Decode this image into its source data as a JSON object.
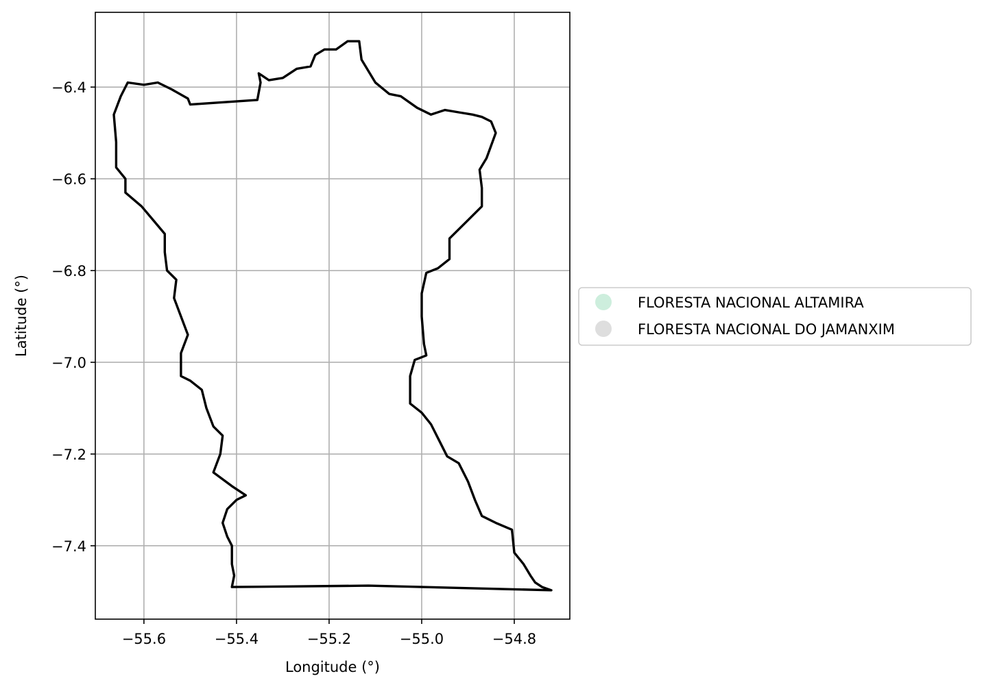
{
  "chart_data": {
    "type": "map",
    "xlabel": "Longitude (°)",
    "ylabel": "Latitude (°)",
    "xlim": [
      -55.705,
      -54.68
    ],
    "ylim": [
      -7.56,
      -6.237
    ],
    "xticks": [
      {
        "value": -55.6,
        "label": "−55.6"
      },
      {
        "value": -55.4,
        "label": "−55.4"
      },
      {
        "value": -55.2,
        "label": "−55.2"
      },
      {
        "value": -55.0,
        "label": "−55.0"
      },
      {
        "value": -54.8,
        "label": "−54.8"
      }
    ],
    "yticks": [
      {
        "value": -6.4,
        "label": "−6.4"
      },
      {
        "value": -6.6,
        "label": "−6.6"
      },
      {
        "value": -6.8,
        "label": "−6.8"
      },
      {
        "value": -7.0,
        "label": "−7.0"
      },
      {
        "value": -7.2,
        "label": "−7.2"
      },
      {
        "value": -7.4,
        "label": "−7.4"
      }
    ],
    "grid": true,
    "legend": {
      "placement": "center-right-outside",
      "entries": [
        {
          "label": "FLORESTA NACIONAL ALTAMIRA",
          "color": "#cdeedd"
        },
        {
          "label": "FLORESTA NACIONAL DO JAMANXIM",
          "color": "#dedede"
        }
      ]
    },
    "boundary_color": "#000000",
    "boundary": [
      [
        -55.5,
        -6.438
      ],
      [
        -55.355,
        -6.428
      ],
      [
        -55.348,
        -6.39
      ],
      [
        -55.352,
        -6.37
      ],
      [
        -55.33,
        -6.385
      ],
      [
        -55.3,
        -6.38
      ],
      [
        -55.27,
        -6.36
      ],
      [
        -55.24,
        -6.355
      ],
      [
        -55.23,
        -6.33
      ],
      [
        -55.21,
        -6.318
      ],
      [
        -55.185,
        -6.318
      ],
      [
        -55.16,
        -6.3
      ],
      [
        -55.135,
        -6.3
      ],
      [
        -55.13,
        -6.34
      ],
      [
        -55.1,
        -6.39
      ],
      [
        -55.07,
        -6.415
      ],
      [
        -55.045,
        -6.42
      ],
      [
        -55.01,
        -6.445
      ],
      [
        -54.98,
        -6.46
      ],
      [
        -54.95,
        -6.45
      ],
      [
        -54.92,
        -6.455
      ],
      [
        -54.89,
        -6.46
      ],
      [
        -54.87,
        -6.465
      ],
      [
        -54.85,
        -6.475
      ],
      [
        -54.84,
        -6.5
      ],
      [
        -54.86,
        -6.555
      ],
      [
        -54.875,
        -6.58
      ],
      [
        -54.87,
        -6.62
      ],
      [
        -54.87,
        -6.66
      ],
      [
        -54.9,
        -6.69
      ],
      [
        -54.92,
        -6.71
      ],
      [
        -54.94,
        -6.73
      ],
      [
        -54.94,
        -6.775
      ],
      [
        -54.965,
        -6.795
      ],
      [
        -54.99,
        -6.805
      ],
      [
        -55.0,
        -6.85
      ],
      [
        -55.0,
        -6.9
      ],
      [
        -54.995,
        -6.96
      ],
      [
        -54.99,
        -6.985
      ],
      [
        -55.015,
        -6.995
      ],
      [
        -55.025,
        -7.03
      ],
      [
        -55.025,
        -7.09
      ],
      [
        -55.0,
        -7.11
      ],
      [
        -54.98,
        -7.135
      ],
      [
        -54.96,
        -7.175
      ],
      [
        -54.945,
        -7.205
      ],
      [
        -54.92,
        -7.22
      ],
      [
        -54.9,
        -7.26
      ],
      [
        -54.885,
        -7.3
      ],
      [
        -54.87,
        -7.335
      ],
      [
        -54.84,
        -7.35
      ],
      [
        -54.805,
        -7.365
      ],
      [
        -54.8,
        -7.415
      ],
      [
        -54.78,
        -7.44
      ],
      [
        -54.765,
        -7.465
      ],
      [
        -54.755,
        -7.48
      ],
      [
        -54.74,
        -7.49
      ],
      [
        -54.72,
        -7.497
      ],
      [
        -55.115,
        -7.487
      ],
      [
        -55.41,
        -7.49
      ],
      [
        -55.405,
        -7.465
      ],
      [
        -55.41,
        -7.44
      ],
      [
        -55.41,
        -7.4
      ],
      [
        -55.42,
        -7.38
      ],
      [
        -55.43,
        -7.35
      ],
      [
        -55.42,
        -7.32
      ],
      [
        -55.4,
        -7.3
      ],
      [
        -55.38,
        -7.29
      ],
      [
        -55.41,
        -7.27
      ],
      [
        -55.45,
        -7.24
      ],
      [
        -55.435,
        -7.2
      ],
      [
        -55.43,
        -7.16
      ],
      [
        -55.45,
        -7.14
      ],
      [
        -55.465,
        -7.1
      ],
      [
        -55.475,
        -7.06
      ],
      [
        -55.5,
        -7.04
      ],
      [
        -55.52,
        -7.03
      ],
      [
        -55.52,
        -6.98
      ],
      [
        -55.505,
        -6.94
      ],
      [
        -55.52,
        -6.9
      ],
      [
        -55.535,
        -6.86
      ],
      [
        -55.53,
        -6.82
      ],
      [
        -55.55,
        -6.8
      ],
      [
        -55.555,
        -6.76
      ],
      [
        -55.555,
        -6.72
      ],
      [
        -55.58,
        -6.69
      ],
      [
        -55.605,
        -6.66
      ],
      [
        -55.64,
        -6.63
      ],
      [
        -55.64,
        -6.6
      ],
      [
        -55.66,
        -6.575
      ],
      [
        -55.66,
        -6.52
      ],
      [
        -55.665,
        -6.46
      ],
      [
        -55.65,
        -6.42
      ],
      [
        -55.635,
        -6.39
      ],
      [
        -55.6,
        -6.395
      ],
      [
        -55.57,
        -6.39
      ],
      [
        -55.54,
        -6.405
      ],
      [
        -55.505,
        -6.425
      ],
      [
        -55.5,
        -6.438
      ]
    ]
  }
}
